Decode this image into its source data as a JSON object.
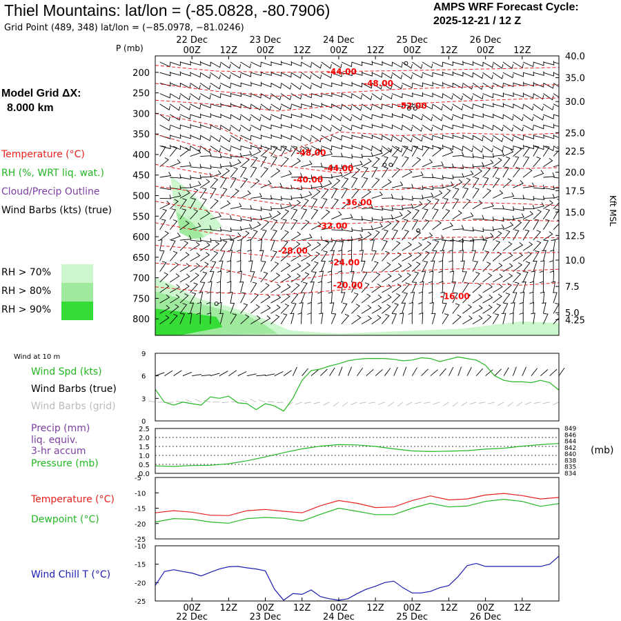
{
  "header": {
    "title": "Thiel Mountains:  lat/lon = (-85.0828, -80.7906)",
    "grid_point": "Grid Point (489, 348) lat/lon = (−85.0978, −81.0246)",
    "forecast_title": "AMPS WRF Forecast Cycle:",
    "forecast_cycle": "2025-12-21 / 12  Z",
    "grid_dx_label": "Model Grid ΔX:",
    "grid_dx_value": "8.000 km"
  },
  "legend": {
    "temperature": "Temperature (°C)",
    "rh": "RH (%, WRT liq. wat.)",
    "cloud": "Cloud/Precip Outline",
    "wind_barbs": "Wind Barbs (kts) (true)",
    "rh_bins": [
      "RH > 70%",
      "RH > 80%",
      "RH > 90%"
    ],
    "colors": {
      "temperature": "#e8211d",
      "rh": "#22b822",
      "cloud": "#7b3fa0",
      "rh70": "#ccf7cc",
      "rh80": "#a0eaa0",
      "rh90": "#37dd37",
      "windchill": "#1a1ab0",
      "barb_grid": "#bbbbbb"
    }
  },
  "chart_data": [
    {
      "type": "contour",
      "name": "upper-air cross section",
      "time_labels": [
        "00Z",
        "12Z",
        "00Z",
        "12Z",
        "00Z",
        "12Z",
        "00Z",
        "12Z",
        "00Z",
        "12Z"
      ],
      "time_hours": [
        12,
        24,
        36,
        48,
        60,
        72,
        84,
        96,
        108,
        120
      ],
      "date_labels": [
        "22 Dec",
        "23 Dec",
        "24 Dec",
        "25 Dec",
        "26 Dec"
      ],
      "date_hours": [
        12,
        36,
        60,
        84,
        108
      ],
      "pressure_label": "P (mb)",
      "pressure_ticks": [
        200,
        250,
        300,
        350,
        400,
        450,
        500,
        550,
        600,
        650,
        700,
        750,
        800
      ],
      "height_label": "Kft MSL",
      "height_ticks": [
        "40.0",
        "35.0",
        "30.0",
        "25.0",
        "22.5",
        "20.0",
        "17.5",
        "15.0",
        "12.5",
        "10.0",
        "7.5",
        "5.0",
        "4.25"
      ],
      "height_tick_pressures": [
        160,
        213,
        271,
        347,
        392,
        443,
        488,
        540,
        597,
        657,
        721,
        785,
        802
      ],
      "p_range": [
        160,
        840
      ],
      "t_range": [
        0,
        132
      ],
      "temp_contours": [
        {
          "label": "-16.00",
          "points": [
            [
              0,
              722
            ],
            [
              20,
              736
            ],
            [
              40,
              742
            ],
            [
              60,
              730
            ],
            [
              80,
              718
            ],
            [
              100,
              712
            ],
            [
              120,
              718
            ],
            [
              132,
              712
            ]
          ]
        },
        {
          "label": "-20.00",
          "points": [
            [
              0,
              664
            ],
            [
              20,
              675
            ],
            [
              40,
              712
            ],
            [
              60,
              689
            ],
            [
              80,
              684
            ],
            [
              100,
              678
            ],
            [
              120,
              683
            ],
            [
              132,
              679
            ]
          ]
        },
        {
          "label": "-24.00",
          "points": [
            [
              0,
              621
            ],
            [
              20,
              633
            ],
            [
              40,
              650
            ],
            [
              60,
              643
            ],
            [
              80,
              641
            ],
            [
              100,
              638
            ],
            [
              120,
              640
            ],
            [
              132,
              638
            ]
          ]
        },
        {
          "label": "-28.00",
          "points": [
            [
              0,
              566
            ],
            [
              20,
              593
            ],
            [
              40,
              610
            ],
            [
              60,
              608
            ],
            [
              80,
              604
            ],
            [
              100,
              601
            ],
            [
              120,
              603
            ],
            [
              132,
              602
            ]
          ]
        },
        {
          "label": "-32.00",
          "points": [
            [
              0,
              514
            ],
            [
              20,
              540
            ],
            [
              40,
              566
            ],
            [
              60,
              569
            ],
            [
              80,
              563
            ],
            [
              100,
              560
            ],
            [
              120,
              560
            ],
            [
              132,
              562
            ]
          ]
        },
        {
          "label": "-36.00",
          "points": [
            [
              0,
              477
            ],
            [
              20,
              497
            ],
            [
              40,
              520
            ],
            [
              60,
              532
            ],
            [
              80,
              524
            ],
            [
              100,
              516
            ],
            [
              120,
              520
            ],
            [
              132,
              524
            ]
          ]
        },
        {
          "label": "-40.00",
          "points": [
            [
              0,
              424
            ],
            [
              20,
              452
            ],
            [
              40,
              480
            ],
            [
              60,
              485
            ],
            [
              80,
              485
            ],
            [
              100,
              472
            ],
            [
              120,
              475
            ],
            [
              132,
              480
            ]
          ]
        },
        {
          "label": "-44.00",
          "points": [
            [
              0,
              350
            ],
            [
              20,
              393
            ],
            [
              40,
              426
            ],
            [
              60,
              445
            ],
            [
              80,
              437
            ],
            [
              100,
              432
            ],
            [
              120,
              434
            ],
            [
              132,
              432
            ]
          ]
        },
        {
          "label": "-48.00",
          "points": [
            [
              0,
              300
            ],
            [
              20,
              330
            ],
            [
              40,
              405
            ],
            [
              60,
              345
            ],
            [
              80,
              354
            ],
            [
              100,
              348
            ],
            [
              120,
              352
            ],
            [
              132,
              348
            ]
          ]
        },
        {
          "label": "-52.00",
          "points": [
            [
              0,
              268
            ],
            [
              20,
              278
            ],
            [
              40,
              294
            ],
            [
              60,
              281
            ],
            [
              80,
              278
            ],
            [
              100,
              270
            ],
            [
              120,
              265
            ],
            [
              132,
              262
            ]
          ]
        },
        {
          "label": "-48.00",
          "points": [
            [
              0,
              227
            ],
            [
              20,
              246
            ],
            [
              40,
              258
            ],
            [
              60,
              250
            ],
            [
              80,
              241
            ],
            [
              100,
              236
            ],
            [
              120,
              232
            ],
            [
              132,
              230
            ]
          ]
        },
        {
          "label": "-44.00",
          "points": [
            [
              0,
              183
            ],
            [
              20,
              197
            ],
            [
              40,
              200
            ],
            [
              60,
              198
            ],
            [
              80,
              196
            ],
            [
              100,
              193
            ],
            [
              120,
              190
            ],
            [
              132,
              188
            ]
          ]
        }
      ],
      "temp_label_positions": [
        [
          98,
          745
        ],
        [
          63,
          718
        ],
        [
          62,
          663
        ],
        [
          45,
          634
        ],
        [
          58,
          574
        ],
        [
          66,
          517
        ],
        [
          50,
          461
        ],
        [
          60,
          434
        ],
        [
          51,
          396
        ],
        [
          84,
          282
        ],
        [
          73,
          227
        ],
        [
          61,
          199
        ]
      ],
      "rh_areas": [
        {
          "level": "RH > 70%",
          "points": [
            [
              0,
              840
            ],
            [
              0,
              700
            ],
            [
              6,
              718
            ],
            [
              14,
              750
            ],
            [
              24,
              770
            ],
            [
              34,
              795
            ],
            [
              44,
              828
            ],
            [
              60,
              836
            ],
            [
              80,
              830
            ],
            [
              100,
              824
            ],
            [
              120,
              806
            ],
            [
              132,
              810
            ],
            [
              132,
              840
            ]
          ]
        },
        {
          "level": "RH > 70%",
          "points": [
            [
              5,
              452
            ],
            [
              10,
              480
            ],
            [
              18,
              540
            ],
            [
              22,
              575
            ],
            [
              14,
              610
            ],
            [
              8,
              580
            ],
            [
              6,
              520
            ]
          ]
        },
        {
          "level": "RH > 80%",
          "points": [
            [
              0,
              840
            ],
            [
              0,
              733
            ],
            [
              8,
              750
            ],
            [
              18,
              770
            ],
            [
              30,
              792
            ],
            [
              36,
              815
            ],
            [
              40,
              836
            ],
            [
              12,
              840
            ]
          ]
        },
        {
          "level": "RH > 80%",
          "points": [
            [
              7,
              540
            ],
            [
              12,
              565
            ],
            [
              16,
              600
            ],
            [
              12,
              606
            ],
            [
              8,
              590
            ]
          ]
        },
        {
          "level": "RH > 90%",
          "points": [
            [
              0,
              840
            ],
            [
              0,
              775
            ],
            [
              10,
              784
            ],
            [
              20,
              795
            ],
            [
              22,
              820
            ],
            [
              8,
              840
            ]
          ]
        }
      ]
    },
    {
      "type": "line",
      "name": "10 m wind speed",
      "title": "Wind at 10 m",
      "legend": [
        "Wind Spd (kts)",
        "Wind Barbs (true)",
        "Wind Barbs (grid)"
      ],
      "ylim": [
        0,
        9
      ],
      "yticks": [
        0,
        3,
        6,
        9
      ],
      "x_hours": [
        0,
        3,
        6,
        9,
        12,
        15,
        18,
        21,
        24,
        27,
        30,
        33,
        36,
        39,
        42,
        45,
        48,
        51,
        54,
        57,
        60,
        63,
        66,
        69,
        72,
        75,
        78,
        81,
        84,
        87,
        90,
        93,
        96,
        99,
        102,
        105,
        108,
        111,
        114,
        117,
        120,
        123,
        126,
        129,
        132
      ],
      "wind_speed_kts": [
        4.2,
        2.5,
        2.1,
        2.5,
        2.3,
        2.1,
        3.2,
        3.0,
        3.3,
        2.4,
        2.3,
        1.5,
        2.3,
        2.0,
        1.3,
        3.0,
        5.4,
        6.7,
        6.9,
        7.3,
        7.6,
        8.0,
        8.2,
        8.3,
        8.3,
        8.3,
        8.2,
        8.0,
        8.1,
        8.4,
        8.3,
        7.9,
        8.2,
        8.5,
        8.3,
        8.1,
        7.4,
        6.0,
        5.4,
        5.2,
        5.2,
        5.1,
        5.4,
        5.1,
        4.1
      ]
    },
    {
      "type": "line",
      "name": "pressure and precipitation",
      "legend": [
        "Precip (mm)",
        "liq. equiv.",
        "3-hr accum",
        "Pressure (mb)"
      ],
      "precip_ticks": [
        "0.0",
        "0.5",
        "1.0",
        "1.5",
        "2.0",
        "2.5"
      ],
      "precip_range": [
        0,
        2.5
      ],
      "pressure_ticks": [
        "834",
        "835",
        "838",
        "840",
        "842",
        "844",
        "846",
        "849"
      ],
      "pressure_range": [
        834,
        849
      ],
      "right_label": "(mb)",
      "x_hours": [
        0,
        6,
        12,
        18,
        24,
        30,
        36,
        42,
        48,
        54,
        60,
        66,
        72,
        78,
        84,
        90,
        96,
        102,
        108,
        114,
        120,
        126,
        132
      ],
      "pressure_mb": [
        836.5,
        836.3,
        836.6,
        836.7,
        837.2,
        838.2,
        839.5,
        840.9,
        842.2,
        843.1,
        843.6,
        843.5,
        843.0,
        842.2,
        841.5,
        841.3,
        841.4,
        841.6,
        842.1,
        842.4,
        843.1,
        843.6,
        844.0
      ]
    },
    {
      "type": "line",
      "name": "temperature and dewpoint",
      "legend": [
        "Temperature (°C)",
        "Dewpoint (°C)"
      ],
      "yticks": [
        -5,
        -10,
        -15,
        -20,
        -25
      ],
      "ylim": [
        -25,
        -5
      ],
      "x_hours": [
        0,
        6,
        12,
        18,
        24,
        30,
        36,
        42,
        48,
        54,
        60,
        66,
        72,
        78,
        84,
        90,
        96,
        102,
        108,
        114,
        120,
        126,
        132
      ],
      "temperature_c": [
        -16.5,
        -15.8,
        -16.3,
        -17.3,
        -17.4,
        -15.8,
        -15.4,
        -16.0,
        -16.5,
        -14.2,
        -12.5,
        -13.4,
        -14.8,
        -14.6,
        -12.5,
        -11.0,
        -12.3,
        -12.0,
        -10.7,
        -10.2,
        -10.9,
        -12.0,
        -11.5
      ],
      "dewpoint_c": [
        -19.5,
        -18.4,
        -18.6,
        -19.5,
        -19.9,
        -18.4,
        -18.0,
        -18.3,
        -19.2,
        -17.0,
        -15.0,
        -16.0,
        -17.1,
        -17.1,
        -15.0,
        -13.4,
        -14.6,
        -14.3,
        -12.8,
        -12.1,
        -12.8,
        -14.4,
        -13.5
      ]
    },
    {
      "type": "line",
      "name": "wind chill",
      "legend": [
        "Wind Chill T (°C)"
      ],
      "yticks": [
        -10,
        -15,
        -20,
        -25
      ],
      "ylim": [
        -25,
        -10
      ],
      "x_hours": [
        0,
        3,
        6,
        9,
        12,
        15,
        18,
        21,
        24,
        27,
        30,
        33,
        36,
        39,
        42,
        45,
        48,
        51,
        54,
        57,
        60,
        63,
        66,
        69,
        72,
        75,
        78,
        81,
        84,
        87,
        90,
        93,
        96,
        99,
        102,
        105,
        108,
        111,
        114,
        117,
        120,
        123,
        126,
        129,
        132
      ],
      "wind_chill_c": [
        -20.8,
        -17.0,
        -16.5,
        -17.0,
        -17.4,
        -18.2,
        -17.2,
        -16.3,
        -15.7,
        -15.6,
        -16.0,
        -16.3,
        -16.8,
        -21.8,
        -24.8,
        -23.0,
        -23.2,
        -22.0,
        -23.8,
        -24.4,
        -24.8,
        -24.4,
        -23.0,
        -21.8,
        -21.0,
        -20.0,
        -19.6,
        -21.4,
        -22.8,
        -22.8,
        -22.4,
        -21.4,
        -20.8,
        -18.4,
        -15.4,
        -14.8,
        -15.6,
        -15.6,
        -15.6,
        -15.6,
        -15.6,
        -15.6,
        -15.6,
        -15.0,
        -12.8
      ]
    }
  ]
}
